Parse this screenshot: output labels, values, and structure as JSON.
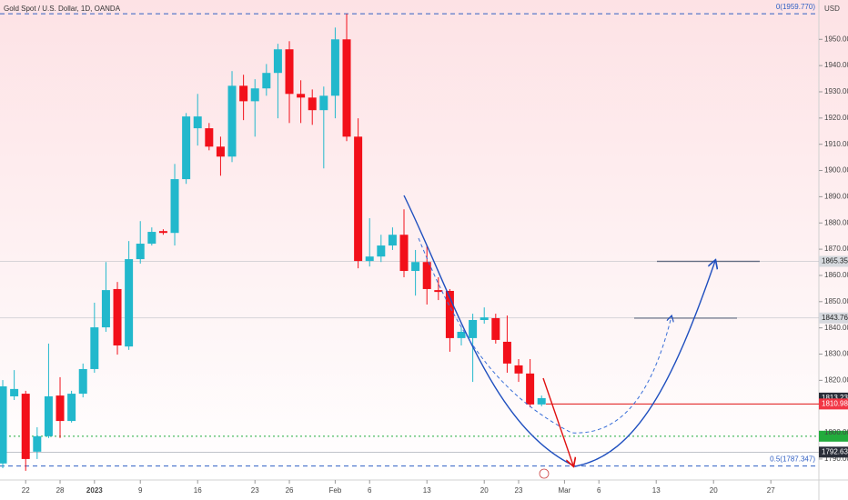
{
  "chart_data": {
    "type": "candlestick",
    "title": "Gold Spot / U.S. Dollar, 1D, OANDA",
    "currency": "USD",
    "up_color": "#22b8cc",
    "down_color": "#f2101a",
    "open": [
      1788.3,
      1813.9,
      1814.9,
      1792.8,
      1798.7,
      1814.2,
      1804.5,
      1814.9,
      1824.3,
      1840.2,
      1854.8,
      1832.9,
      1866.2,
      1872.1,
      1876.9,
      1876.2,
      1896.7,
      1916.1,
      1916.1,
      1909.1,
      1905.3,
      1932.3,
      1926.4,
      1931.3,
      1937.2,
      1946.2,
      1929.2,
      1927.8,
      1923.0,
      1928.5,
      1950.0,
      1912.9,
      1865.5,
      1867.2,
      1871.4,
      1875.5,
      1861.7,
      1865.1,
      1854.4,
      1854.1,
      1836.1,
      1836.1,
      1843.0,
      1843.7,
      1834.7,
      1825.7,
      1822.6,
      1810.8
    ],
    "high": [
      1820.1,
      1823.9,
      1816.0,
      1802.1,
      1834.0,
      1821.2,
      1816.0,
      1826.4,
      1849.6,
      1865.1,
      1857.5,
      1873.1,
      1880.7,
      1878.3,
      1877.6,
      1902.5,
      1921.9,
      1929.2,
      1918.1,
      1912.9,
      1937.9,
      1936.5,
      1934.8,
      1940.6,
      1948.3,
      1949.3,
      1934.4,
      1930.9,
      1932.0,
      1954.5,
      1959.7,
      1919.9,
      1881.8,
      1875.5,
      1878.3,
      1885.2,
      1869.7,
      1871.4,
      1859.3,
      1854.8,
      1840.2,
      1845.4,
      1847.8,
      1845.4,
      1844.7,
      1828.1,
      1828.1,
      1814.2
    ],
    "low": [
      1786.5,
      1812.5,
      1785.5,
      1790.0,
      1798.0,
      1798.0,
      1803.9,
      1813.5,
      1822.9,
      1838.5,
      1829.8,
      1831.6,
      1864.5,
      1871.4,
      1875.5,
      1871.4,
      1894.9,
      1909.5,
      1907.7,
      1898.0,
      1903.2,
      1919.2,
      1912.9,
      1928.5,
      1919.9,
      1918.1,
      1918.1,
      1917.4,
      1900.8,
      1919.9,
      1911.2,
      1862.7,
      1863.4,
      1865.1,
      1869.7,
      1859.3,
      1852.3,
      1848.9,
      1850.6,
      1830.9,
      1833.3,
      1819.4,
      1841.6,
      1834.0,
      1822.9,
      1819.4,
      1809.7,
      1810.1
    ],
    "close": [
      1817.7,
      1816.7,
      1790.0,
      1798.7,
      1813.9,
      1804.5,
      1814.9,
      1824.3,
      1840.2,
      1854.4,
      1833.3,
      1866.2,
      1872.1,
      1876.6,
      1876.2,
      1896.7,
      1920.6,
      1920.6,
      1909.1,
      1905.3,
      1932.3,
      1926.4,
      1931.3,
      1937.2,
      1946.2,
      1929.2,
      1927.8,
      1923.0,
      1928.5,
      1950.0,
      1912.9,
      1865.5,
      1867.2,
      1871.4,
      1875.5,
      1861.7,
      1865.1,
      1854.8,
      1853.7,
      1836.1,
      1838.5,
      1843.0,
      1844.0,
      1835.4,
      1826.4,
      1822.6,
      1810.8,
      1813.2
    ],
    "ylim": [
      1782,
      1965
    ],
    "yticks": [
      {
        "value": 1790,
        "label": "1790.000"
      },
      {
        "value": 1800,
        "label": "1800.000"
      },
      {
        "value": 1810,
        "label": "1810.000"
      },
      {
        "value": 1820,
        "label": "1820.000"
      },
      {
        "value": 1830,
        "label": "1830.000"
      },
      {
        "value": 1840,
        "label": "1840.000"
      },
      {
        "value": 1850,
        "label": "1850.000"
      },
      {
        "value": 1860,
        "label": "1860.000"
      },
      {
        "value": 1870,
        "label": "1870.000"
      },
      {
        "value": 1880,
        "label": "1880.000"
      },
      {
        "value": 1890,
        "label": "1890.000"
      },
      {
        "value": 1900,
        "label": "1900.000"
      },
      {
        "value": 1910,
        "label": "1910.000"
      },
      {
        "value": 1920,
        "label": "1920.000"
      },
      {
        "value": 1930,
        "label": "1930.000"
      },
      {
        "value": 1940,
        "label": "1940.000"
      },
      {
        "value": 1950,
        "label": "1950.000"
      }
    ],
    "xlim": [
      -0.24,
      71.19
    ],
    "xticks": [
      {
        "value": 2,
        "label": "22"
      },
      {
        "value": 5,
        "label": "28"
      },
      {
        "value": 8,
        "label": "2023"
      },
      {
        "value": 12,
        "label": "9"
      },
      {
        "value": 17,
        "label": "16"
      },
      {
        "value": 22,
        "label": "23"
      },
      {
        "value": 25,
        "label": "26"
      },
      {
        "value": 29,
        "label": "Feb"
      },
      {
        "value": 32,
        "label": "6"
      },
      {
        "value": 37,
        "label": "13"
      },
      {
        "value": 42,
        "label": "20"
      },
      {
        "value": 45,
        "label": "23"
      },
      {
        "value": 49,
        "label": "Mar"
      },
      {
        "value": 52,
        "label": "6"
      },
      {
        "value": 57,
        "label": "13"
      },
      {
        "value": 62,
        "label": "20"
      },
      {
        "value": 67,
        "label": "27"
      }
    ],
    "fib_levels": [
      {
        "value": 1959.77,
        "label": "0(1959.770)"
      },
      {
        "value": 1787.347,
        "label": "0.5(1787.347)"
      }
    ],
    "target_levels": [
      1865.35,
      1843.76
    ],
    "support_level": 1798.7,
    "price_labels": [
      {
        "value": 1865.35,
        "label": "1865.350",
        "color": "#d6d9de"
      },
      {
        "value": 1843.76,
        "label": "1843.760",
        "color": "#d6d9de"
      },
      {
        "value": 1813.23,
        "label": "1813.230",
        "color": "#2a2e39"
      },
      {
        "value": 1810.985,
        "label": "1810.985",
        "color": "#f23645"
      },
      {
        "value": 1792.63,
        "label": "1792.630",
        "color": "#2a2e39"
      }
    ]
  }
}
